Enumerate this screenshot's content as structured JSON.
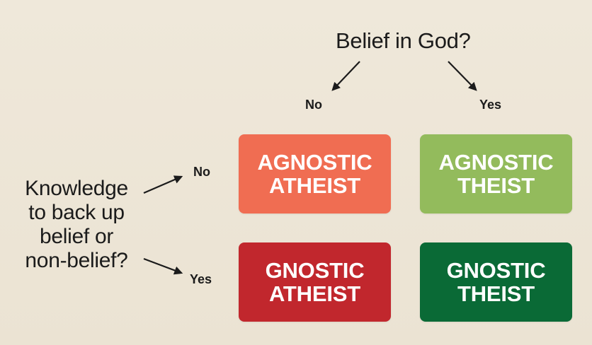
{
  "diagram": {
    "top_question": "Belief in God?",
    "left_question": [
      "Knowledge",
      "to back up",
      "belief or",
      "non-belief?"
    ],
    "column_labels": {
      "no": "No",
      "yes": "Yes"
    },
    "row_labels": {
      "no": "No",
      "yes": "Yes"
    },
    "boxes": {
      "agnostic_atheist": {
        "line1": "AGNOSTIC",
        "line2": "ATHEIST",
        "color": "#f06d52"
      },
      "agnostic_theist": {
        "line1": "AGNOSTIC",
        "line2": "THEIST",
        "color": "#93bb5c"
      },
      "gnostic_atheist": {
        "line1": "GNOSTIC",
        "line2": "ATHEIST",
        "color": "#c1272d"
      },
      "gnostic_theist": {
        "line1": "GNOSTIC",
        "line2": "THEIST",
        "color": "#0a6a36"
      }
    },
    "colors": {
      "background": "#efe8da",
      "text": "#1b1b1b"
    }
  }
}
